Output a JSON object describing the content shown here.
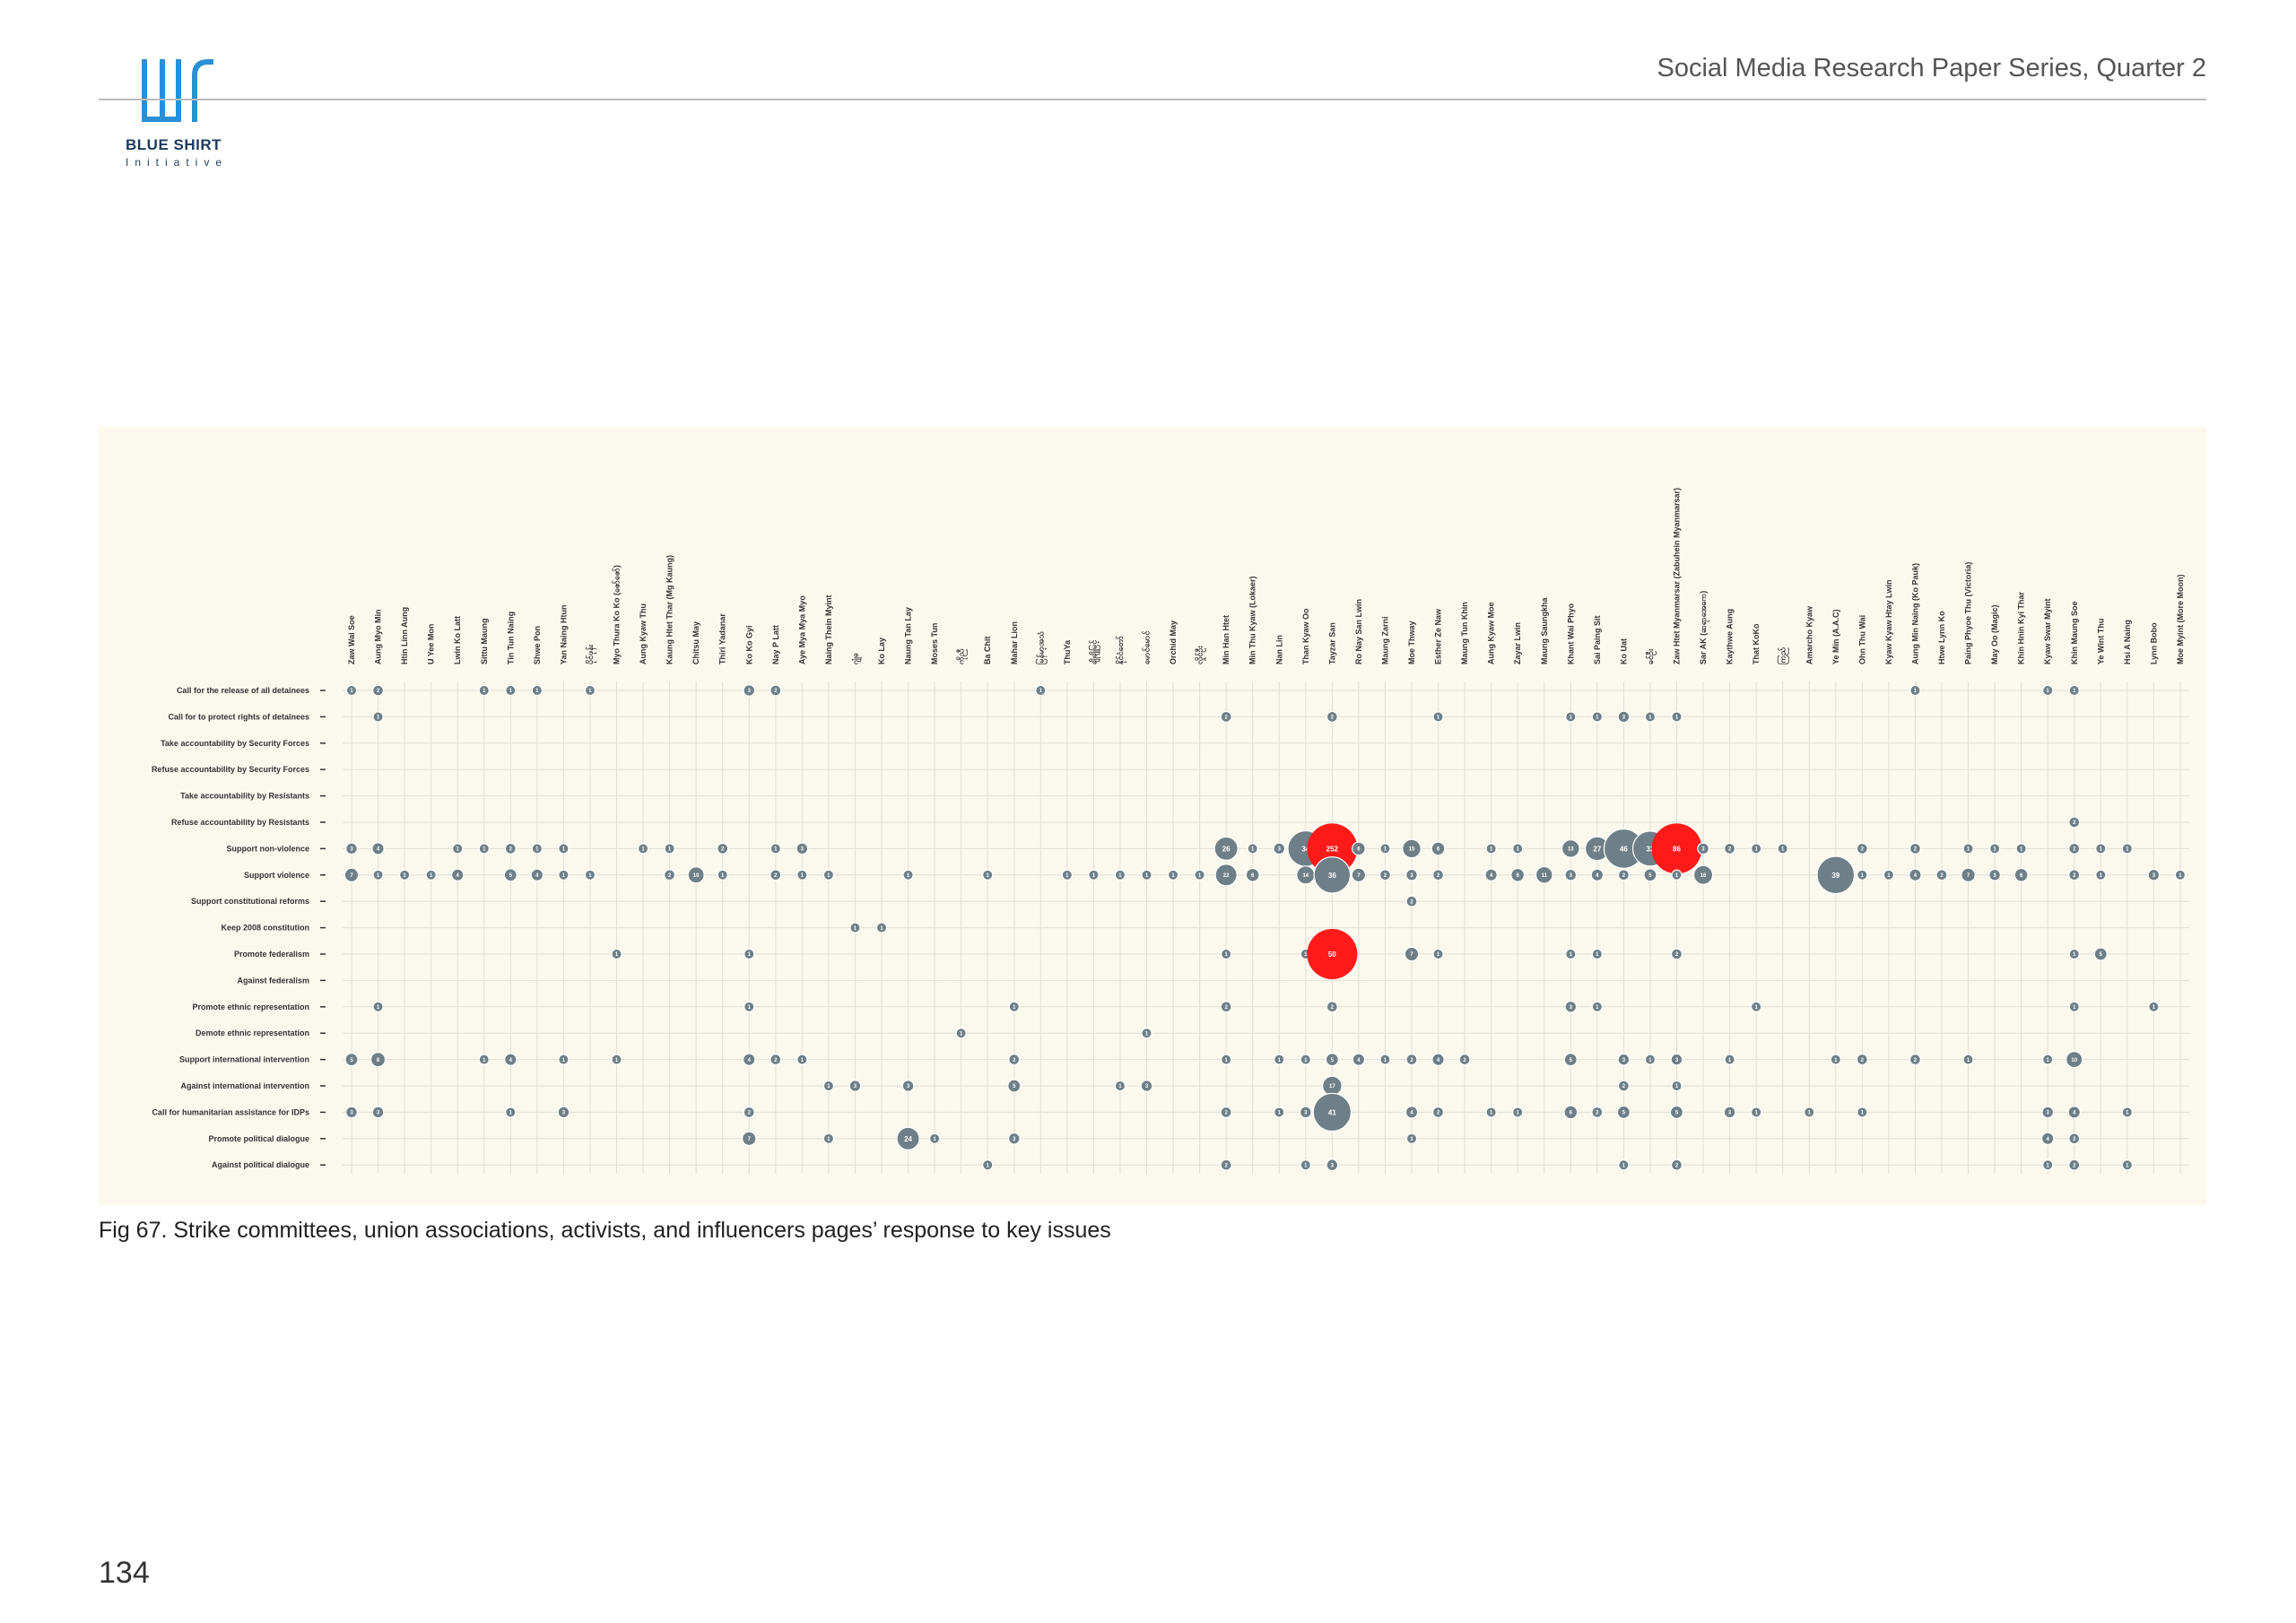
{
  "header": {
    "logo_name": "BLUE SHIRT",
    "logo_sub": "Initiative",
    "series_title": "Social Media Research Paper Series, Quarter 2"
  },
  "caption": "Fig 67. Strike committees, union associations, activists, and influencers pages’ response to key issues",
  "page_number": "134",
  "colors": {
    "bubble_gray": "#6e7f87",
    "bubble_red": "#ff1a1a",
    "panel_bg": "#fbf8ee",
    "grid": "#e2e0d6",
    "logo_blue": "#2a8fd4"
  },
  "chart_data": {
    "type": "bubble-matrix",
    "title": "",
    "grid": true,
    "columns": [
      "Zaw Wai Soe",
      "Aung Myo Min",
      "Htin Linn Aung",
      "U Yee Mon",
      "Lwin Ko Latt",
      "Sittu Maung",
      "Tin Tun Naing",
      "Shwe Pon",
      "Yan Naing Htun",
      "ပိုင်ဖုန်း",
      "Myo Thura Ko Ko (ဇော်ဇော်)",
      "Aung Kyaw Thu",
      "Kaung Htet Thar (Mg Kaung)",
      "Chitsu May",
      "Thiri Yadanar",
      "Ko Ko Gyi",
      "Nay P Latt",
      "Aye Mya Mya Myo",
      "Naing Thein Myint",
      "ဂျုံခ",
      "Ko Lay",
      "Naung Tan Lay",
      "Moses Tun",
      "ကိုညီ",
      "Ba Chit",
      "Mahar Lion",
      "မြန်မာ့အသံ",
      "ThuYa",
      "ချိုချိုမြင့်",
      "နိုင်ငံတော်",
      "မောင်မောင်",
      "Orchid May",
      "လှိုင်ဦး",
      "Min Han Htet",
      "Min Thu Kyaw (Lokaer)",
      "Nan Lin",
      "Than Kyaw Oo",
      "Tayzar San",
      "Ro Nay San Lwin",
      "Maung Zarni",
      "Moe Thway",
      "Esther Ze Naw",
      "Maung Tun Khin",
      "Aung Kyaw Moe",
      "Zayar Lwin",
      "Maung Saungkha",
      "Khant Wai Phyo",
      "Sai Paing Sit",
      "Ko Uat",
      "ခင်ဦး",
      "Zaw Htet Myanmarsar (Zabuhein Myanmarsar)",
      "Sar AK (ဆရာအေကေ)",
      "Kaythwe Aung",
      "That KoKo",
      "ကြည်",
      "Amarcho Kyaw",
      "Ye Min (A.A.C)",
      "Ohn Thu Wai",
      "Kyaw Kyaw Htay Lwin",
      "Aung Min Naing (Ko Pauk)",
      "Htwe Lynn Ko",
      "Paing Phyoe Thu (Victoria)",
      "May Oo (Magic)",
      "Khin Hnin Kyi Thar",
      "Kyaw Swar Myint",
      "Khin Maung Soe",
      "Ye Wint Thu",
      "Hsi A Naing",
      "Lynn Bobo",
      "Moe Myint (More Moon)"
    ],
    "rows": [
      "Call for the release of all detainees",
      "Call for to protect rights of detainees",
      "Take accountability by Security Forces",
      "Refuse accountability by Security Forces",
      "Take accountability by Resistants",
      "Refuse accountability by Resistants",
      "Support non-violence",
      "Support violence",
      "Support constitutional reforms",
      "Keep 2008 constitution",
      "Promote federalism",
      "Against federalism",
      "Promote ethnic representation",
      "Demote ethnic representation",
      "Support international intervention",
      "Against international intervention",
      "Call for humanitarian assistance for IDPs",
      "Promote political dialogue",
      "Against political dialogue"
    ],
    "highlight_labels": [
      "252",
      "50",
      "86"
    ],
    "points": [
      [
        0,
        0,
        1
      ],
      [
        1,
        0,
        2
      ],
      [
        5,
        0,
        1
      ],
      [
        6,
        0,
        1
      ],
      [
        7,
        0,
        1
      ],
      [
        9,
        0,
        1
      ],
      [
        15,
        0,
        3
      ],
      [
        16,
        0,
        2
      ],
      [
        26,
        0,
        1
      ],
      [
        59,
        0,
        1
      ],
      [
        64,
        0,
        1
      ],
      [
        65,
        0,
        1
      ],
      [
        1,
        1,
        1
      ],
      [
        33,
        1,
        2
      ],
      [
        37,
        1,
        2
      ],
      [
        41,
        1,
        1
      ],
      [
        46,
        1,
        1
      ],
      [
        47,
        1,
        1
      ],
      [
        48,
        1,
        3
      ],
      [
        49,
        1,
        1
      ],
      [
        50,
        1,
        1
      ],
      [
        65,
        5,
        2
      ],
      [
        0,
        6,
        3
      ],
      [
        1,
        6,
        4
      ],
      [
        4,
        6,
        1
      ],
      [
        5,
        6,
        1
      ],
      [
        6,
        6,
        2
      ],
      [
        7,
        6,
        1
      ],
      [
        8,
        6,
        1
      ],
      [
        11,
        6,
        1
      ],
      [
        12,
        6,
        1
      ],
      [
        14,
        6,
        2
      ],
      [
        16,
        6,
        1
      ],
      [
        17,
        6,
        3
      ],
      [
        33,
        6,
        26
      ],
      [
        34,
        6,
        1
      ],
      [
        35,
        6,
        3
      ],
      [
        36,
        6,
        34
      ],
      [
        37,
        6,
        252,
        "r"
      ],
      [
        38,
        6,
        6
      ],
      [
        39,
        6,
        1
      ],
      [
        40,
        6,
        15
      ],
      [
        41,
        6,
        6
      ],
      [
        43,
        6,
        1
      ],
      [
        44,
        6,
        1
      ],
      [
        46,
        6,
        13
      ],
      [
        47,
        6,
        27
      ],
      [
        48,
        6,
        46
      ],
      [
        49,
        6,
        32
      ],
      [
        50,
        6,
        86,
        "r"
      ],
      [
        51,
        6,
        3
      ],
      [
        52,
        6,
        2
      ],
      [
        53,
        6,
        1
      ],
      [
        54,
        6,
        1
      ],
      [
        57,
        6,
        2
      ],
      [
        59,
        6,
        2
      ],
      [
        61,
        6,
        1
      ],
      [
        62,
        6,
        1
      ],
      [
        63,
        6,
        1
      ],
      [
        65,
        6,
        2
      ],
      [
        66,
        6,
        1
      ],
      [
        67,
        6,
        1
      ],
      [
        0,
        7,
        7
      ],
      [
        1,
        7,
        1
      ],
      [
        2,
        7,
        1
      ],
      [
        3,
        7,
        1
      ],
      [
        4,
        7,
        4
      ],
      [
        6,
        7,
        5
      ],
      [
        7,
        7,
        4
      ],
      [
        8,
        7,
        1
      ],
      [
        9,
        7,
        1
      ],
      [
        12,
        7,
        2
      ],
      [
        13,
        7,
        10
      ],
      [
        14,
        7,
        1
      ],
      [
        16,
        7,
        2
      ],
      [
        17,
        7,
        1
      ],
      [
        18,
        7,
        1
      ],
      [
        21,
        7,
        1
      ],
      [
        24,
        7,
        1
      ],
      [
        27,
        7,
        1
      ],
      [
        28,
        7,
        1
      ],
      [
        29,
        7,
        1
      ],
      [
        30,
        7,
        1
      ],
      [
        31,
        7,
        1
      ],
      [
        32,
        7,
        1
      ],
      [
        33,
        7,
        22
      ],
      [
        34,
        7,
        6
      ],
      [
        36,
        7,
        14
      ],
      [
        37,
        7,
        36
      ],
      [
        38,
        7,
        7
      ],
      [
        39,
        7,
        2
      ],
      [
        40,
        7,
        3
      ],
      [
        41,
        7,
        2
      ],
      [
        43,
        7,
        4
      ],
      [
        44,
        7,
        6
      ],
      [
        45,
        7,
        11
      ],
      [
        46,
        7,
        3
      ],
      [
        47,
        7,
        4
      ],
      [
        48,
        7,
        2
      ],
      [
        49,
        7,
        5
      ],
      [
        50,
        7,
        1
      ],
      [
        51,
        7,
        16
      ],
      [
        56,
        7,
        39
      ],
      [
        57,
        7,
        1
      ],
      [
        58,
        7,
        1
      ],
      [
        59,
        7,
        4
      ],
      [
        60,
        7,
        2
      ],
      [
        61,
        7,
        7
      ],
      [
        62,
        7,
        3
      ],
      [
        63,
        7,
        6
      ],
      [
        65,
        7,
        2
      ],
      [
        66,
        7,
        1
      ],
      [
        68,
        7,
        3
      ],
      [
        69,
        7,
        1
      ],
      [
        40,
        8,
        2
      ],
      [
        19,
        9,
        1
      ],
      [
        20,
        9,
        1
      ],
      [
        10,
        10,
        1
      ],
      [
        15,
        10,
        1
      ],
      [
        33,
        10,
        1
      ],
      [
        36,
        10,
        1
      ],
      [
        37,
        10,
        50,
        "r"
      ],
      [
        40,
        10,
        7
      ],
      [
        41,
        10,
        1
      ],
      [
        46,
        10,
        1
      ],
      [
        47,
        10,
        1
      ],
      [
        50,
        10,
        2
      ],
      [
        65,
        10,
        1
      ],
      [
        66,
        10,
        5
      ],
      [
        1,
        12,
        1
      ],
      [
        15,
        12,
        1
      ],
      [
        25,
        12,
        1
      ],
      [
        33,
        12,
        2
      ],
      [
        37,
        12,
        2
      ],
      [
        46,
        12,
        3
      ],
      [
        47,
        12,
        1
      ],
      [
        53,
        12,
        1
      ],
      [
        65,
        12,
        1
      ],
      [
        68,
        12,
        1
      ],
      [
        23,
        13,
        1
      ],
      [
        30,
        13,
        1
      ],
      [
        0,
        14,
        5
      ],
      [
        1,
        14,
        8
      ],
      [
        5,
        14,
        1
      ],
      [
        6,
        14,
        4
      ],
      [
        8,
        14,
        1
      ],
      [
        10,
        14,
        1
      ],
      [
        15,
        14,
        4
      ],
      [
        16,
        14,
        2
      ],
      [
        17,
        14,
        1
      ],
      [
        25,
        14,
        2
      ],
      [
        33,
        14,
        1
      ],
      [
        35,
        14,
        1
      ],
      [
        36,
        14,
        1
      ],
      [
        37,
        14,
        5
      ],
      [
        38,
        14,
        4
      ],
      [
        39,
        14,
        1
      ],
      [
        40,
        14,
        2
      ],
      [
        41,
        14,
        4
      ],
      [
        42,
        14,
        2
      ],
      [
        46,
        14,
        5
      ],
      [
        48,
        14,
        3
      ],
      [
        49,
        14,
        1
      ],
      [
        50,
        14,
        3
      ],
      [
        52,
        14,
        1
      ],
      [
        56,
        14,
        1
      ],
      [
        57,
        14,
        2
      ],
      [
        59,
        14,
        2
      ],
      [
        61,
        14,
        1
      ],
      [
        64,
        14,
        1
      ],
      [
        65,
        14,
        10
      ],
      [
        18,
        15,
        1
      ],
      [
        19,
        15,
        3
      ],
      [
        21,
        15,
        3
      ],
      [
        25,
        15,
        5
      ],
      [
        29,
        15,
        1
      ],
      [
        30,
        15,
        3
      ],
      [
        37,
        15,
        17
      ],
      [
        48,
        15,
        2
      ],
      [
        50,
        15,
        1
      ],
      [
        0,
        16,
        3
      ],
      [
        1,
        16,
        3
      ],
      [
        6,
        16,
        1
      ],
      [
        8,
        16,
        3
      ],
      [
        15,
        16,
        2
      ],
      [
        33,
        16,
        2
      ],
      [
        35,
        16,
        1
      ],
      [
        36,
        16,
        3
      ],
      [
        37,
        16,
        41
      ],
      [
        40,
        16,
        4
      ],
      [
        41,
        16,
        2
      ],
      [
        43,
        16,
        1
      ],
      [
        44,
        16,
        1
      ],
      [
        46,
        16,
        6
      ],
      [
        47,
        16,
        2
      ],
      [
        48,
        16,
        5
      ],
      [
        50,
        16,
        5
      ],
      [
        52,
        16,
        3
      ],
      [
        53,
        16,
        1
      ],
      [
        55,
        16,
        1
      ],
      [
        57,
        16,
        1
      ],
      [
        64,
        16,
        3
      ],
      [
        65,
        16,
        4
      ],
      [
        67,
        16,
        1
      ],
      [
        15,
        17,
        7
      ],
      [
        18,
        17,
        1
      ],
      [
        21,
        17,
        24
      ],
      [
        22,
        17,
        1
      ],
      [
        25,
        17,
        3
      ],
      [
        40,
        17,
        1
      ],
      [
        64,
        17,
        4
      ],
      [
        65,
        17,
        2
      ],
      [
        24,
        18,
        1
      ],
      [
        33,
        18,
        2
      ],
      [
        36,
        18,
        1
      ],
      [
        37,
        18,
        3
      ],
      [
        48,
        18,
        1
      ],
      [
        50,
        18,
        2
      ],
      [
        64,
        18,
        1
      ],
      [
        65,
        18,
        2
      ],
      [
        67,
        18,
        1
      ]
    ]
  }
}
